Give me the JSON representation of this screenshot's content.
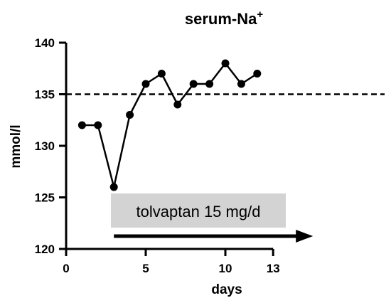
{
  "chart_data": {
    "type": "line",
    "title": "serum-Na",
    "title_superscript": "+",
    "xlabel": "days",
    "ylabel": "mmol/l",
    "xlim": [
      0,
      20
    ],
    "ylim": [
      120,
      140
    ],
    "x_ticks": [
      0,
      5,
      10,
      13
    ],
    "y_ticks": [
      120,
      125,
      130,
      135,
      140
    ],
    "grid": false,
    "legend": "none",
    "series": [
      {
        "x": [
          1,
          2,
          3,
          4,
          5,
          6,
          7,
          8,
          9,
          10,
          11,
          12
        ],
        "values": [
          132,
          132,
          126,
          133,
          136,
          137,
          134,
          136,
          136,
          138,
          136,
          137
        ],
        "color": "#000000"
      }
    ],
    "reference_line": {
      "y": 135,
      "style": "dashed",
      "color": "#000000"
    },
    "annotation": {
      "text": "tolvaptan 15 mg/d",
      "box_color": "#d3d3d3",
      "arrow_x_start": 3,
      "arrow_x_end": 15.5
    }
  }
}
